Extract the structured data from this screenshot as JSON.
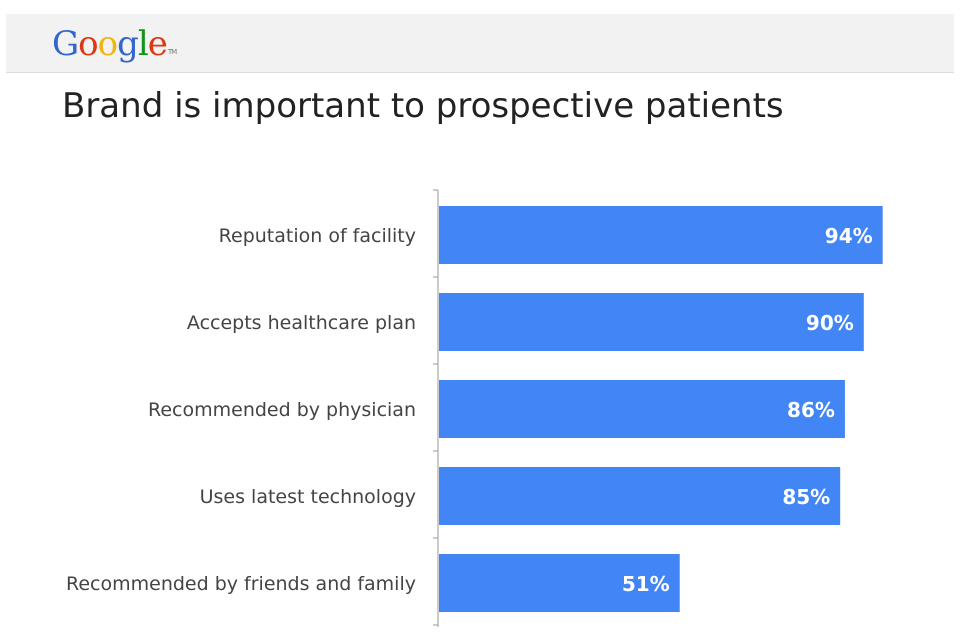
{
  "header": {
    "logo": {
      "letters": [
        {
          "ch": "G",
          "color": "#3366cc"
        },
        {
          "ch": "o",
          "color": "#dc3912"
        },
        {
          "ch": "o",
          "color": "#f2b50f"
        },
        {
          "ch": "g",
          "color": "#3366cc"
        },
        {
          "ch": "l",
          "color": "#109618"
        },
        {
          "ch": "e",
          "color": "#dc3912"
        }
      ],
      "tm": "TM"
    }
  },
  "title": "Brand is important to prospective patients",
  "chart_data": {
    "type": "bar",
    "orientation": "horizontal",
    "categories": [
      "Reputation of facility",
      "Accepts healthcare plan",
      "Recommended by physician",
      "Uses latest technology",
      "Recommended by friends and family"
    ],
    "values": [
      94,
      90,
      86,
      85,
      51
    ],
    "value_labels": [
      "94%",
      "90%",
      "86%",
      "85%",
      "51%"
    ],
    "xlim": [
      0,
      100
    ],
    "bar_color": "#4285f4",
    "grid": false,
    "legend": "none"
  }
}
